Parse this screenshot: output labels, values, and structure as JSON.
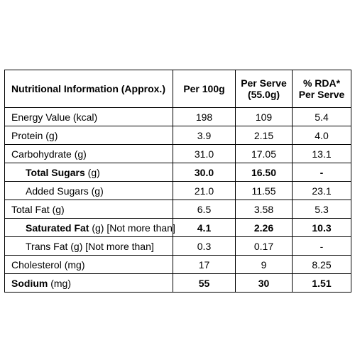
{
  "header": {
    "nutrient": "Nutritional Information (Approx.)",
    "per_100g": "Per 100g",
    "per_serve_line1": "Per Serve",
    "per_serve_line2": "(55.0g)",
    "rda_line1": "% RDA*",
    "rda_line2": "Per Serve"
  },
  "rows": [
    {
      "bold_part": "",
      "label": "Energy Value (kcal)",
      "per_100g": "198",
      "per_serve": "109",
      "rda": "5.4"
    },
    {
      "bold_part": "",
      "label": "Protein (g)",
      "per_100g": "3.9",
      "per_serve": "2.15",
      "rda": "4.0"
    },
    {
      "bold_part": "",
      "label": "Carbohydrate (g)",
      "per_100g": "31.0",
      "per_serve": "17.05",
      "rda": "13.1"
    },
    {
      "bold_part": "Total Sugars",
      "label": " (g)",
      "per_100g": "30.0",
      "per_serve": "16.50",
      "rda": "-"
    },
    {
      "bold_part": "",
      "label": "Added Sugars (g)",
      "per_100g": "21.0",
      "per_serve": "11.55",
      "rda": "23.1"
    },
    {
      "bold_part": "",
      "label": "Total Fat (g)",
      "per_100g": "6.5",
      "per_serve": "3.58",
      "rda": "5.3"
    },
    {
      "bold_part": "Saturated Fat",
      "label": " (g) [Not more than]",
      "per_100g": "4.1",
      "per_serve": "2.26",
      "rda": "10.3"
    },
    {
      "bold_part": "",
      "label": "Trans Fat (g) [Not more than]",
      "per_100g": "0.3",
      "per_serve": "0.17",
      "rda": "-"
    },
    {
      "bold_part": "",
      "label": "Cholesterol (mg)",
      "per_100g": "17",
      "per_serve": "9",
      "rda": "8.25"
    },
    {
      "bold_part": "Sodium",
      "label": " (mg)",
      "per_100g": "55",
      "per_serve": "30",
      "rda": "1.51"
    }
  ]
}
